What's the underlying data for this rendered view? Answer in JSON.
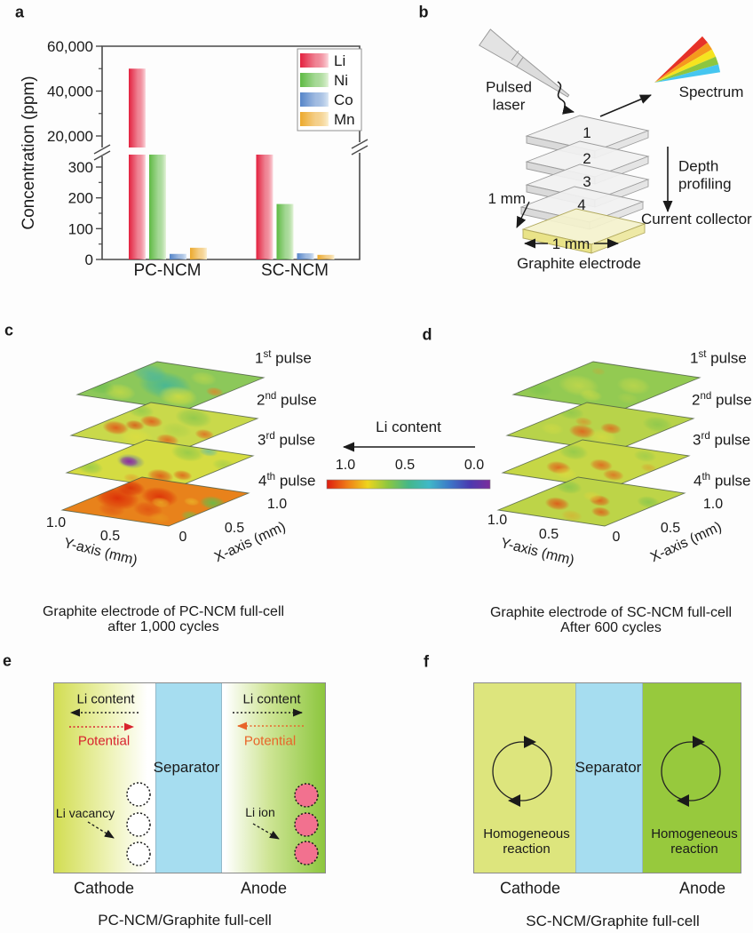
{
  "panel_letters": {
    "a": "a",
    "b": "b",
    "c": "c",
    "d": "d",
    "e": "e",
    "f": "f"
  },
  "chart_data": {
    "type": "bar",
    "title": "",
    "ylabel": "Concentration (ppm)",
    "categories": [
      "PC-NCM",
      "SC-NCM"
    ],
    "series": [
      {
        "name": "Li",
        "dark": "#e3213f",
        "light": "#fcdce1",
        "values": [
          50000,
          350
        ]
      },
      {
        "name": "Ni",
        "dark": "#5eba43",
        "light": "#e6f4dc",
        "values": [
          350,
          180
        ]
      },
      {
        "name": "Co",
        "dark": "#5585c9",
        "light": "#dce8f5",
        "values": [
          18,
          20
        ]
      },
      {
        "name": "Mn",
        "dark": "#eca92c",
        "light": "#fbf0d2",
        "values": [
          38,
          15
        ]
      }
    ],
    "upper_axis": {
      "min": 20000,
      "max": 60000,
      "ticks": [
        {
          "v": 20000,
          "label": "20,000"
        },
        {
          "v": 40000,
          "label": "40,000"
        },
        {
          "v": 60000,
          "label": "60,000"
        }
      ],
      "minor": [
        30000,
        50000
      ]
    },
    "lower_axis": {
      "min": 0,
      "max": 350,
      "ticks": [
        {
          "v": 0,
          "label": "0"
        },
        {
          "v": 100,
          "label": "100"
        },
        {
          "v": 200,
          "label": "200"
        },
        {
          "v": 300,
          "label": "300"
        }
      ],
      "minor": [
        50,
        150,
        250
      ]
    },
    "axis_break_note": "y-axis broken between 350 and 20,000 ppm"
  },
  "panel_b": {
    "pulsed_laser": "Pulsed\nlaser",
    "spectrum": "Spectrum",
    "depth_profiling": "Depth\nprofiling",
    "mm_left": "1 mm",
    "mm_bottom": "1 mm",
    "current_collector": "Current collector",
    "graphite_electrode": "Graphite electrode",
    "layers": [
      "1",
      "2",
      "3",
      "4"
    ]
  },
  "colorbar": {
    "title": "Li content",
    "ticks": [
      "1.0",
      "0.5",
      "0.0"
    ],
    "stops": [
      "#dd1c10",
      "#ef7c16",
      "#eed51d",
      "#8cc741",
      "#44b789",
      "#3fb9c8",
      "#3c78c8",
      "#4a3ab0",
      "#7b2d9b"
    ]
  },
  "pulses": [
    {
      "n": "1",
      "s": "st",
      "w": " pulse"
    },
    {
      "n": "2",
      "s": "nd",
      "w": " pulse"
    },
    {
      "n": "3",
      "s": "rd",
      "w": " pulse"
    },
    {
      "n": "4",
      "s": "th",
      "w": " pulse"
    }
  ],
  "map_axes": {
    "y_ticks": [
      "1.0",
      "0.5",
      "0"
    ],
    "x_ticks": [
      "0.5",
      "1.0"
    ],
    "y_label": "Y-axis (mm)",
    "x_label": "X-axis (mm)"
  },
  "panel_c": {
    "caption1": "Graphite electrode of PC-NCM full-cell",
    "caption2": "after 1,000 cycles",
    "layers": [
      {
        "base": "#8cc85a",
        "blobs": [
          [
            0.45,
            0.5,
            30,
            "#35b2a4",
            0.75
          ],
          [
            0.14,
            0.72,
            20,
            "#3fb3ae",
            0.6
          ],
          [
            0.72,
            0.3,
            22,
            "#e3e23a",
            0.75
          ],
          [
            0.25,
            0.2,
            18,
            "#dfe13c",
            0.55
          ],
          [
            0.6,
            0.78,
            15,
            "#cfdd45",
            0.5
          ],
          [
            0.9,
            0.52,
            10,
            "#e08427",
            0.8
          ],
          [
            0.03,
            0.25,
            16,
            "#5fba49",
            0.5
          ]
        ]
      },
      {
        "base": "#c9d94b",
        "blobs": [
          [
            0.18,
            0.32,
            15,
            "#e25417",
            0.9
          ],
          [
            0.32,
            0.58,
            13,
            "#e25417",
            0.85
          ],
          [
            0.27,
            0.44,
            11,
            "#d94d13",
            0.8
          ],
          [
            0.74,
            0.22,
            13,
            "#e0631c",
            0.85
          ],
          [
            0.9,
            0.47,
            11,
            "#e0631c",
            0.8
          ],
          [
            0.55,
            0.8,
            21,
            "#79c24e",
            0.65
          ],
          [
            0.07,
            0.78,
            15,
            "#79c24e",
            0.55
          ],
          [
            0.64,
            0.47,
            17,
            "#a0cc4a",
            0.45
          ],
          [
            0.48,
            0.18,
            19,
            "#e6e03a",
            0.55
          ]
        ]
      },
      {
        "base": "#d5dc42",
        "blobs": [
          [
            0.25,
            0.47,
            16,
            "#3f55c4",
            0.55
          ],
          [
            0.24,
            0.46,
            11,
            "#8f28a0",
            0.95
          ],
          [
            0.7,
            0.24,
            15,
            "#e04e12",
            0.85
          ],
          [
            0.84,
            0.33,
            11,
            "#e04e12",
            0.75
          ],
          [
            0.54,
            0.1,
            10,
            "#e4952a",
            0.6
          ],
          [
            0.07,
            0.2,
            15,
            "#74c14e",
            0.55
          ],
          [
            0.5,
            0.85,
            19,
            "#74c14e",
            0.6
          ],
          [
            0.95,
            0.7,
            13,
            "#8cc74d",
            0.5
          ],
          [
            0.62,
            0.95,
            11,
            "#3bafc2",
            0.55
          ]
        ]
      },
      {
        "base": "#e8821b",
        "blobs": [
          [
            0.18,
            0.45,
            25,
            "#dc2a06",
            0.9
          ],
          [
            0.45,
            0.62,
            21,
            "#dc2a06",
            0.85
          ],
          [
            0.1,
            0.72,
            17,
            "#d62505",
            0.8
          ],
          [
            0.58,
            0.3,
            17,
            "#e04b10",
            0.75
          ],
          [
            0.33,
            0.18,
            15,
            "#e05312",
            0.65
          ],
          [
            0.55,
            0.5,
            11,
            "#ecd22e",
            0.6
          ],
          [
            0.75,
            0.62,
            9,
            "#ead32f",
            0.5
          ],
          [
            0.92,
            0.66,
            15,
            "#63bd4a",
            0.9
          ],
          [
            0.98,
            0.3,
            11,
            "#6fc04c",
            0.7
          ],
          [
            0.8,
            0.15,
            12,
            "#e8a01e",
            0.5
          ]
        ]
      }
    ]
  },
  "panel_d": {
    "caption1": "Graphite electrode of SC-NCM full-cell",
    "caption2": "After 600 cycles",
    "layers": [
      {
        "base": "#93ca52",
        "blobs": [
          [
            0.3,
            0.42,
            23,
            "#c9d94a",
            0.75
          ],
          [
            0.68,
            0.6,
            19,
            "#c9d94a",
            0.65
          ],
          [
            0.1,
            0.2,
            15,
            "#76c14e",
            0.5
          ],
          [
            0.55,
            0.24,
            13,
            "#dfe041",
            0.5
          ],
          [
            0.2,
            0.8,
            8,
            "#dd9a2e",
            0.35
          ],
          [
            0.85,
            0.3,
            12,
            "#b4d24b",
            0.5
          ]
        ]
      },
      {
        "base": "#b8d34a",
        "blobs": [
          [
            0.45,
            0.34,
            15,
            "#e0611b",
            0.9
          ],
          [
            0.6,
            0.5,
            12,
            "#e0611b",
            0.8
          ],
          [
            0.3,
            0.56,
            10,
            "#e07a22",
            0.55
          ],
          [
            0.68,
            0.28,
            17,
            "#e4de3c",
            0.55
          ],
          [
            0.2,
            0.3,
            13,
            "#d8dc42",
            0.5
          ],
          [
            0.85,
            0.75,
            17,
            "#79c24e",
            0.6
          ],
          [
            0.06,
            0.72,
            15,
            "#79c24e",
            0.55
          ]
        ]
      },
      {
        "base": "#c6d746",
        "blobs": [
          [
            0.3,
            0.3,
            14,
            "#e0611b",
            0.9
          ],
          [
            0.55,
            0.5,
            13,
            "#e0611b",
            0.85
          ],
          [
            0.8,
            0.32,
            12,
            "#e0611b",
            0.75
          ],
          [
            0.44,
            0.2,
            13,
            "#e6dd3a",
            0.5
          ],
          [
            0.14,
            0.7,
            17,
            "#79c24e",
            0.6
          ],
          [
            0.7,
            0.85,
            13,
            "#84c54e",
            0.5
          ],
          [
            0.92,
            0.6,
            9,
            "#e08a26",
            0.45
          ]
        ]
      },
      {
        "base": "#bdd448",
        "blobs": [
          [
            0.3,
            0.34,
            14,
            "#df5516",
            0.9
          ],
          [
            0.54,
            0.55,
            12,
            "#df5516",
            0.85
          ],
          [
            0.74,
            0.3,
            11,
            "#df5516",
            0.8
          ],
          [
            0.42,
            0.62,
            11,
            "#e6d53a",
            0.55
          ],
          [
            0.1,
            0.75,
            15,
            "#74c14e",
            0.6
          ],
          [
            0.9,
            0.68,
            13,
            "#74c14e",
            0.6
          ],
          [
            0.6,
            0.12,
            12,
            "#e1a027",
            0.5
          ]
        ]
      }
    ]
  },
  "panel_e": {
    "li_content": "Li content",
    "potential": "Potential",
    "separator": "Separator",
    "li_vacancy": "Li vacancy",
    "li_ion": "Li ion",
    "cathode": "Cathode",
    "anode": "Anode",
    "caption": "PC-NCM/Graphite full-cell",
    "colors": {
      "potential_red": "#d8232e",
      "potential_orange": "#e8652a",
      "ion_pink": "#f2718f",
      "separator_blue": "#a6ddf0"
    }
  },
  "panel_f": {
    "separator": "Separator",
    "homogeneous": "Homogeneous\nreaction",
    "cathode": "Cathode",
    "anode": "Anode",
    "caption": "SC-NCM/Graphite full-cell",
    "colors": {
      "cathode": "#dde57d",
      "anode": "#97c93d",
      "separator": "#a6ddf0"
    }
  }
}
